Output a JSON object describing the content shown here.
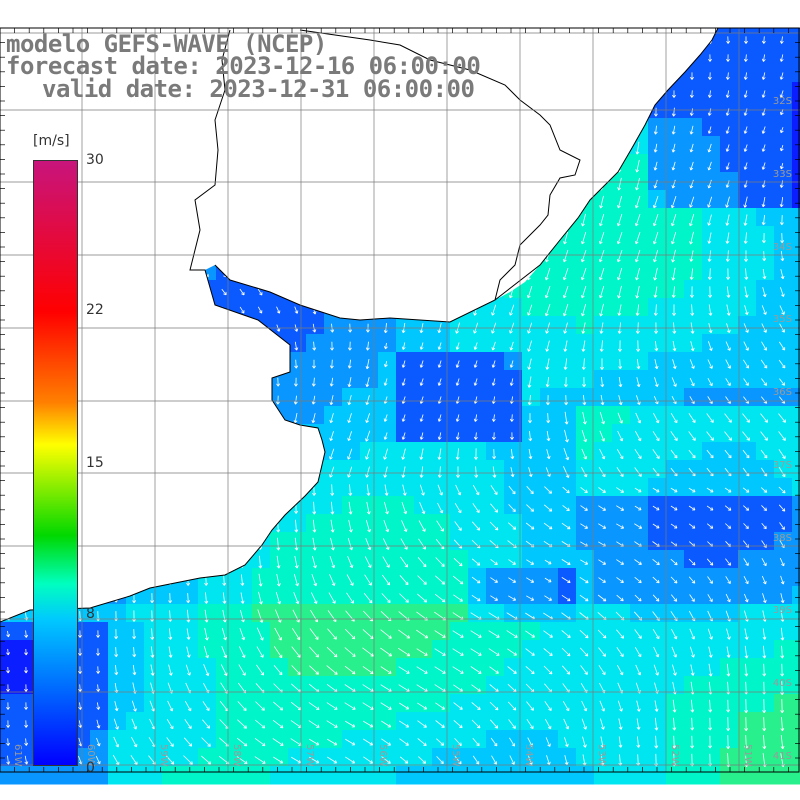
{
  "title": {
    "line1": "modelo GEFS-WAVE (NCEP)",
    "line2": "forecast date: 2023-12-16 06:00:00",
    "line3": "valid date: 2023-12-31 06:00:00"
  },
  "colorbar": {
    "unit": "[m/s]",
    "ticks": [
      "30",
      "22",
      "15",
      "8",
      "0"
    ],
    "colors": [
      "#c8147c",
      "#ff0000",
      "#ff8000",
      "#ffff00",
      "#00d800",
      "#00ffbf",
      "#00c8ff",
      "#0000ff"
    ]
  },
  "map": {
    "lat_labels": [
      "32S",
      "33S",
      "34S",
      "35S",
      "36S",
      "37S",
      "38S",
      "39S",
      "40S",
      "41S"
    ],
    "lon_labels": [
      "61W",
      "60W",
      "59W",
      "58W",
      "57W",
      "56W",
      "55W",
      "54W",
      "53W",
      "52W",
      "51W"
    ],
    "land_color": "#ffffff",
    "grid_color": "#7a7a7a"
  }
}
